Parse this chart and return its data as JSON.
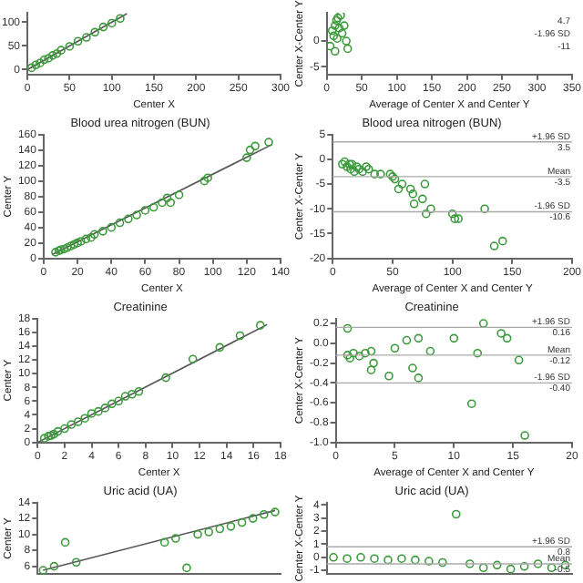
{
  "chart_data": [
    {
      "type": "scatter",
      "xlabel": "Center X",
      "xlim": [
        0,
        300
      ],
      "xticks": [
        0,
        50,
        100,
        150,
        200,
        250,
        300
      ],
      "ylim": [
        -10,
        120
      ],
      "yticks": [
        0,
        50,
        100
      ],
      "grid": false,
      "legend": false,
      "marker": "circle",
      "series": [
        {
          "color": "#3a9a3a",
          "x": [
            5,
            10,
            15,
            20,
            25,
            30,
            35,
            40,
            50,
            60,
            70,
            80,
            90,
            100,
            110
          ],
          "values": [
            4,
            10,
            14,
            21,
            24,
            30,
            34,
            41,
            49,
            60,
            68,
            79,
            90,
            98,
            108
          ]
        },
        {
          "type": "line",
          "marker": "none",
          "color": "#555555",
          "x": [
            0,
            118
          ],
          "values": [
            0,
            118
          ]
        }
      ]
    },
    {
      "type": "scatter",
      "xlabel": "Average of Center X and Center Y",
      "ylabel": "Center X-Center Y",
      "xlim": [
        0,
        350
      ],
      "xticks": [
        0,
        50,
        100,
        150,
        200,
        250,
        300,
        350
      ],
      "ylim": [
        -6.5,
        5.5
      ],
      "yticks": [
        -5,
        0
      ],
      "grid": false,
      "legend": false,
      "marker": "circle",
      "annotations": [
        "4.7",
        "-1.96 SD",
        "-11"
      ],
      "series": [
        {
          "color": "#3a9a3a",
          "x": [
            5,
            8,
            10,
            12,
            14,
            15,
            18,
            20,
            22,
            25,
            28,
            30,
            12,
            16
          ],
          "values": [
            -1,
            2,
            1,
            3,
            4,
            0.5,
            2.5,
            5,
            1.5,
            3,
            0,
            -1.5,
            -2,
            4.5
          ]
        }
      ]
    },
    {
      "type": "scatter",
      "title": "Blood urea nitrogen (BUN)",
      "xlabel": "Center X",
      "ylabel": "Center Y",
      "xlim": [
        0,
        140
      ],
      "xticks": [
        0,
        20,
        40,
        60,
        80,
        100,
        120,
        140
      ],
      "ylim": [
        0,
        160
      ],
      "yticks": [
        0,
        20,
        40,
        60,
        80,
        100,
        120,
        140,
        160
      ],
      "grid": false,
      "legend": false,
      "marker": "circle",
      "series": [
        {
          "color": "#3a9a3a",
          "x": [
            7,
            9,
            10,
            12,
            14,
            16,
            18,
            20,
            22,
            25,
            28,
            30,
            35,
            40,
            45,
            50,
            55,
            60,
            65,
            70,
            73,
            75,
            80,
            95,
            97,
            120,
            122,
            125,
            133
          ],
          "values": [
            8,
            10,
            11,
            12,
            14,
            16,
            18,
            20,
            22,
            25,
            27,
            31,
            35,
            40,
            46,
            51,
            56,
            62,
            66,
            72,
            78,
            72,
            82,
            100,
            104,
            130,
            140,
            145,
            150
          ]
        },
        {
          "type": "line",
          "marker": "none",
          "color": "#555555",
          "x": [
            5,
            135
          ],
          "values": [
            5,
            147
          ]
        }
      ]
    },
    {
      "type": "scatter",
      "title": "Blood urea nitrogen (BUN)",
      "xlabel": "Average of Center X and Center Y",
      "ylabel": "Center X-Center Y",
      "xlim": [
        0,
        200
      ],
      "xticks": [
        0,
        50,
        100,
        150,
        200
      ],
      "ylim": [
        -20,
        5
      ],
      "yticks": [
        -20,
        -15,
        -10,
        -5,
        0,
        5
      ],
      "grid": false,
      "legend": false,
      "marker": "circle",
      "ref_lines": [
        {
          "axis": "y",
          "value": 3.5,
          "label": "+1.96 SD"
        },
        {
          "axis": "y",
          "value": -3.5,
          "label": "Mean"
        },
        {
          "axis": "y",
          "value": -10.6,
          "label": "-1.96 SD"
        }
      ],
      "annotations": [
        {
          "text": "3.5",
          "y": 3.5
        },
        {
          "text": "-3.5",
          "y": -3.5
        },
        {
          "text": "-10.6",
          "y": -10.6
        }
      ],
      "series": [
        {
          "color": "#3a9a3a",
          "x": [
            8,
            10,
            12,
            14,
            15,
            16,
            18,
            20,
            22,
            25,
            28,
            30,
            35,
            40,
            48,
            50,
            52,
            55,
            58,
            65,
            67,
            68,
            75,
            77,
            78,
            82,
            100,
            102,
            105,
            127,
            135,
            142
          ],
          "values": [
            -1,
            -0.5,
            -1.5,
            -1,
            -2,
            -1,
            -2.5,
            -1.5,
            -2,
            -2.5,
            -1.5,
            -2,
            -3,
            -3,
            -3,
            -3.5,
            -4,
            -6,
            -5,
            -6,
            -7,
            -9,
            -8,
            -5,
            -11,
            -10,
            -11,
            -12,
            -12,
            -10,
            -17.5,
            -16.5
          ]
        }
      ]
    },
    {
      "type": "scatter",
      "title": "Creatinine",
      "xlabel": "Center X",
      "ylabel": "Center Y",
      "xlim": [
        0,
        18
      ],
      "xticks": [
        0,
        2,
        4,
        6,
        8,
        10,
        12,
        14,
        16,
        18
      ],
      "ylim": [
        0,
        18
      ],
      "yticks": [
        0,
        2,
        4,
        6,
        8,
        10,
        12,
        14,
        16,
        18
      ],
      "grid": false,
      "legend": false,
      "marker": "circle",
      "series": [
        {
          "color": "#3a9a3a",
          "x": [
            0.5,
            0.8,
            1,
            1.2,
            1.5,
            2,
            2.5,
            3,
            3.5,
            4,
            4.5,
            5,
            5.5,
            6,
            6.5,
            7,
            7.5,
            9.5,
            11.5,
            13.5,
            15,
            16.5
          ],
          "values": [
            0.6,
            0.9,
            1,
            1.2,
            1.6,
            2,
            2.6,
            3,
            3.5,
            4.2,
            4.5,
            5,
            5.6,
            6,
            6.7,
            7,
            7.4,
            9.4,
            12.1,
            13.8,
            15.5,
            17
          ]
        },
        {
          "type": "line",
          "marker": "none",
          "color": "#555555",
          "x": [
            0,
            17
          ],
          "values": [
            0,
            17.1
          ]
        }
      ]
    },
    {
      "type": "scatter",
      "title": "Creatinine",
      "xlabel": "Average of Center X and Center Y",
      "ylabel": "Center X-Center Y",
      "xlim": [
        0,
        20
      ],
      "xticks": [
        0,
        5,
        10,
        15,
        20
      ],
      "ylim": [
        -1.0,
        0.25
      ],
      "yticks": [
        {
          "value": 0.2,
          "label": "0.2"
        },
        {
          "value": 0,
          "label": "0.0"
        },
        {
          "value": -0.2,
          "label": "-0.2"
        },
        {
          "value": -0.4,
          "label": "-0.4"
        },
        {
          "value": -0.6,
          "label": "-0.6"
        },
        {
          "value": -0.8,
          "label": "-0.8"
        },
        {
          "value": -1.0,
          "label": "-1.0"
        }
      ],
      "grid": false,
      "legend": false,
      "marker": "circle",
      "ref_lines": [
        {
          "axis": "y",
          "value": 0.16,
          "label": "+1.96 SD"
        },
        {
          "axis": "y",
          "value": -0.12,
          "label": "Mean"
        },
        {
          "axis": "y",
          "value": -0.4,
          "label": "-1.96 SD"
        }
      ],
      "annotations": [
        {
          "text": "0.16",
          "y": 0.16
        },
        {
          "text": "-0.12",
          "y": -0.12
        },
        {
          "text": "-0.40",
          "y": -0.4
        }
      ],
      "series": [
        {
          "color": "#3a9a3a",
          "x": [
            1,
            1,
            1.2,
            1.5,
            2,
            2.5,
            3,
            3.2,
            3,
            4.5,
            5,
            6,
            6.5,
            7,
            7,
            8,
            10,
            12,
            12.5,
            11.5,
            14,
            15.5,
            16,
            14.5
          ],
          "values": [
            0.15,
            -0.12,
            -0.15,
            -0.1,
            -0.13,
            -0.1,
            -0.08,
            -0.2,
            -0.27,
            -0.33,
            -0.05,
            0.03,
            -0.25,
            -0.35,
            0.05,
            -0.08,
            0.05,
            -0.1,
            0.2,
            -0.61,
            0.1,
            -0.17,
            -0.93,
            0.05
          ]
        }
      ]
    },
    {
      "type": "scatter",
      "title": "Uric acid (UA)",
      "ylabel": "Center Y",
      "tick_labels": "y",
      "categories": [
        null,
        null,
        null,
        null,
        null,
        null,
        null,
        null,
        null,
        null,
        null,
        null,
        null,
        null,
        null,
        null,
        null,
        null,
        null,
        null,
        null,
        null
      ],
      "ylim": [
        5,
        14
      ],
      "yticks": [
        6,
        8,
        10,
        12,
        14
      ],
      "grid": false,
      "legend": false,
      "marker": "circle",
      "series": [
        {
          "color": "#3a9a3a",
          "values": [
            5.5,
            6,
            9,
            6.5,
            null,
            null,
            null,
            null,
            null,
            null,
            null,
            9,
            9.5,
            5.8,
            10,
            10.3,
            10.7,
            11,
            11.5,
            12,
            12.5,
            12.8
          ]
        },
        {
          "type": "line",
          "marker": "none",
          "color": "#555555",
          "values": [
            5.5,
            null,
            null,
            null,
            null,
            null,
            null,
            null,
            null,
            null,
            null,
            null,
            null,
            null,
            null,
            null,
            null,
            null,
            null,
            null,
            null,
            13
          ]
        }
      ]
    },
    {
      "type": "scatter",
      "title": "Uric acid (UA)",
      "ylabel": "Center X-Center Y",
      "tick_labels": "y",
      "categories": [
        null,
        null,
        null,
        null,
        null,
        null,
        null,
        null,
        null,
        null,
        null,
        null,
        null,
        null,
        null,
        null,
        null,
        null
      ],
      "ylim": [
        -1.3,
        4.2
      ],
      "yticks": [
        -1,
        0,
        1,
        2,
        3,
        4
      ],
      "grid": false,
      "legend": false,
      "marker": "circle",
      "ref_lines": [
        {
          "axis": "y",
          "value": 0.8,
          "label": "+1.96 SD"
        },
        {
          "axis": "y",
          "value": -0.5,
          "label": "Mean"
        }
      ],
      "annotations": [
        {
          "text": "0.8",
          "y": 0.8
        },
        {
          "text": "-0.5",
          "y": -0.5
        }
      ],
      "series": [
        {
          "color": "#3a9a3a",
          "values": [
            0,
            -0.1,
            0,
            -0.1,
            -0.2,
            -0.1,
            -0.2,
            -0.3,
            -0.4,
            3.3,
            -0.5,
            -0.8,
            -0.6,
            -0.9,
            -0.7,
            -0.5,
            -0.8,
            -0.6
          ]
        }
      ]
    }
  ]
}
